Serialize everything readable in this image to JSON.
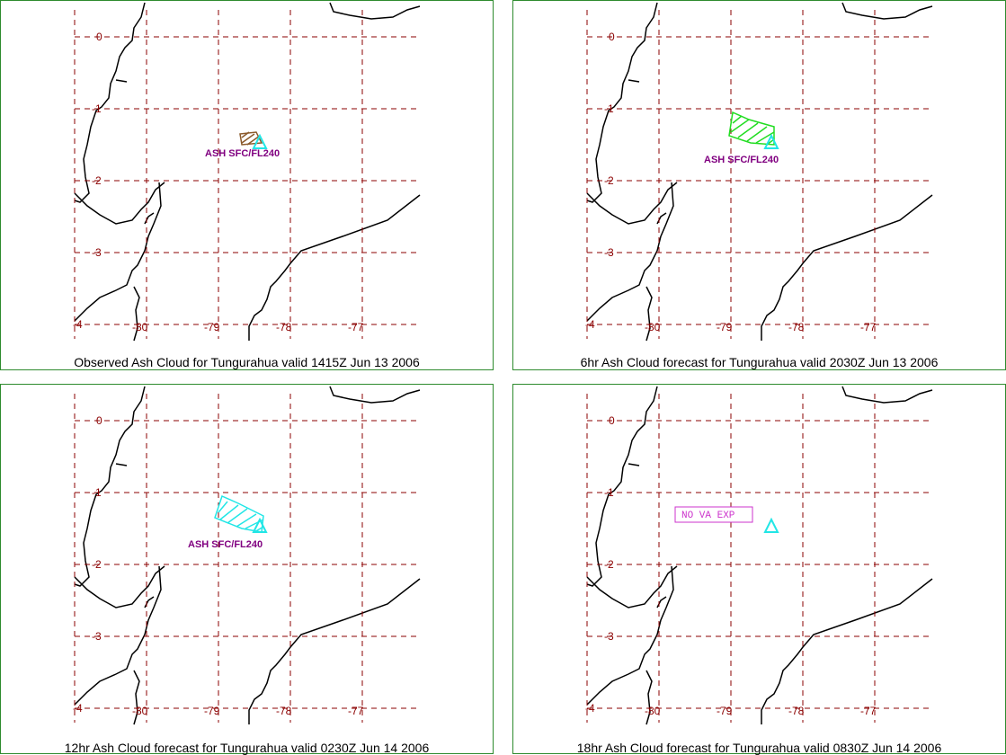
{
  "panels": [
    {
      "caption": "Observed Ash Cloud for Tungurahua valid 1415Z Jun 13 2006",
      "ash_color": "#8b5a2b",
      "ash_label": "ASH SFC/FL240",
      "no_va_label": ""
    },
    {
      "caption": "6hr Ash Cloud forecast for Tungurahua valid 2030Z Jun 13 2006",
      "ash_color": "#22dd22",
      "ash_label": "ASH SFC/FL240",
      "no_va_label": ""
    },
    {
      "caption": "12hr Ash Cloud forecast for Tungurahua valid 0230Z Jun 14 2006",
      "ash_color": "#22e6e6",
      "ash_label": "ASH SFC/FL240",
      "no_va_label": ""
    },
    {
      "caption": "18hr Ash Cloud forecast for Tungurahua valid 0830Z Jun 14 2006",
      "ash_color": "",
      "ash_label": "",
      "no_va_label": "NO VA EXP"
    }
  ],
  "lat_labels": [
    "0",
    "-1",
    "-2",
    "-3",
    "-4"
  ],
  "lon_labels": [
    "-80",
    "-79",
    "-78",
    "-77"
  ],
  "colors": {
    "grid": "#8b0000",
    "volcano": "#22e6e6",
    "coast": "#000000",
    "frame": "#2e8b2e",
    "label": "#800080",
    "no_va": "#cc33cc"
  }
}
